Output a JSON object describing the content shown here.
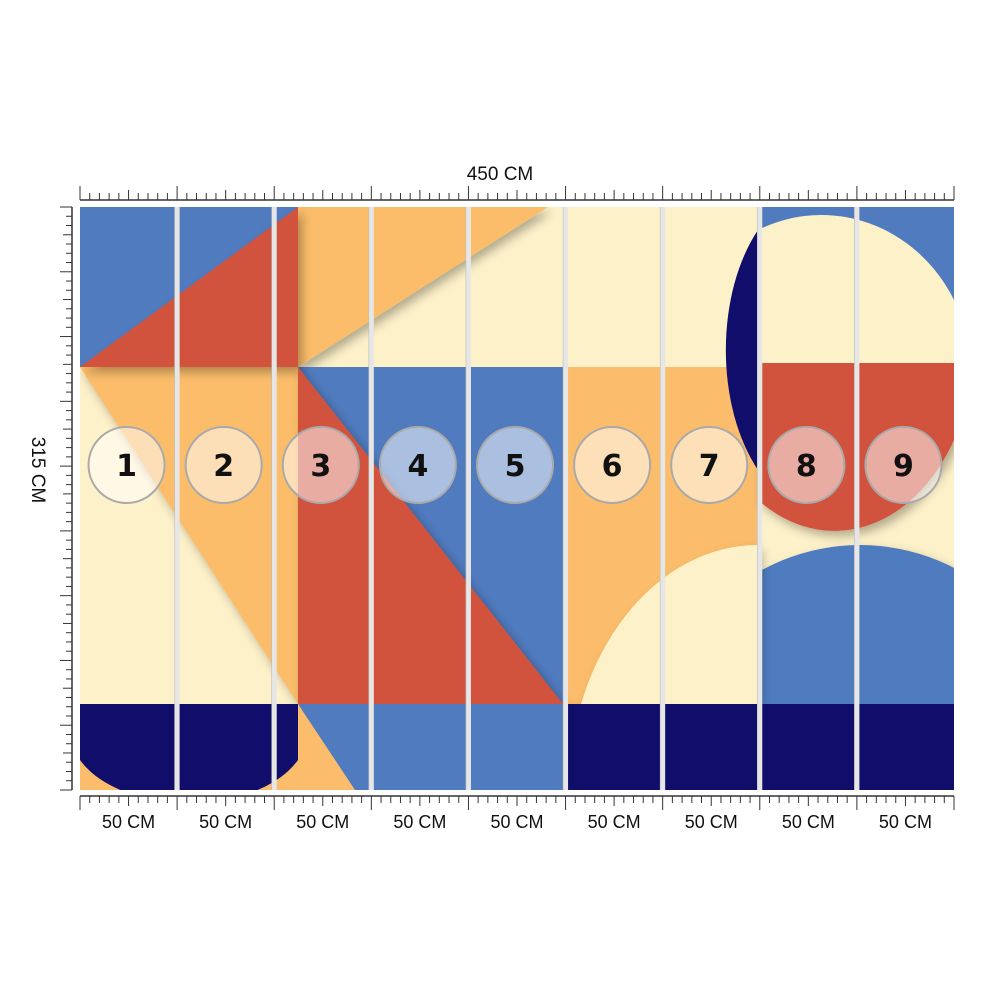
{
  "dimensions": {
    "total_width_label": "450 CM",
    "total_height_label": "315 CM"
  },
  "panels": [
    {
      "number": "1",
      "width_label": "50 CM"
    },
    {
      "number": "2",
      "width_label": "50 CM"
    },
    {
      "number": "3",
      "width_label": "50 CM"
    },
    {
      "number": "4",
      "width_label": "50 CM"
    },
    {
      "number": "5",
      "width_label": "50 CM"
    },
    {
      "number": "6",
      "width_label": "50 CM"
    },
    {
      "number": "7",
      "width_label": "50 CM"
    },
    {
      "number": "8",
      "width_label": "50 CM"
    },
    {
      "number": "9",
      "width_label": "50 CM"
    }
  ],
  "colors": {
    "cream": "#fdf1c9",
    "blue": "#507bbf",
    "red": "#d2533d",
    "orange": "#fbbd6b",
    "navy": "#100d6b",
    "gap": "#e6e6e6",
    "ruler": "#333333"
  }
}
